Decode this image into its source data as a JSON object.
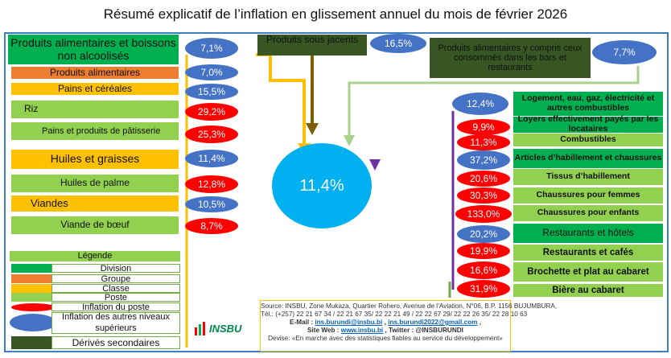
{
  "title": "Résumé  explicatif de l’inflation en glissement annuel du mois de février 2026",
  "left": {
    "items": [
      {
        "label": "Produits alimentaires et boissons  non alcoolisés",
        "value": "7,1%"
      },
      {
        "label": "Produits alimentaires",
        "value": "7,0%"
      },
      {
        "label": "Pains et céréales",
        "value": "15,5%"
      },
      {
        "label": "Riz",
        "value": "29,2%"
      },
      {
        "label": "Pains et produits de pâtisserie",
        "value": "25,3%"
      },
      {
        "label": "Huiles et graisses",
        "value": "11,4%"
      },
      {
        "label": "Huiles de palme",
        "value": "12,8%"
      },
      {
        "label": "Viandes",
        "value": "10,5%"
      },
      {
        "label": "Viande de bœuf",
        "value": "8,7%"
      }
    ]
  },
  "top": {
    "sous_jacents_label": "Produits sous jacents",
    "sous_jacents_value": "16,5%",
    "bars_label": "Produits alimentaires y compris ceux  consommés dans les bars et restaurants",
    "bars_value": "7,7%"
  },
  "center": {
    "value": "11,4%"
  },
  "right": {
    "items": [
      {
        "label": "Logement, eau, gaz, électricité et autres combustibles",
        "value": "12,4%"
      },
      {
        "label": "Loyers effectivement payés par les locataires",
        "value": "9,9%"
      },
      {
        "label": "Combustibles",
        "value": "11,3%"
      },
      {
        "label": "Articles d’habillement et chaussures",
        "value": "37,2%"
      },
      {
        "label": "Tissus d’habillement",
        "value": "20,6%"
      },
      {
        "label": "Chaussures pour femmes",
        "value": "30,3%"
      },
      {
        "label": "Chaussures pour enfants",
        "value": "133,0%"
      },
      {
        "label": "Restaurants et hôtels",
        "value": "20,2%"
      },
      {
        "label": "Restaurants et cafés",
        "value": "19,9%"
      },
      {
        "label": "Brochette et plat au cabaret",
        "value": "16,6%"
      },
      {
        "label": "Bière au cabaret",
        "value": "31,9%"
      }
    ]
  },
  "legend": {
    "title": "Légende",
    "items": [
      {
        "label": "Division",
        "color": "#00b050"
      },
      {
        "label": "Groupe",
        "color": "#ed7d31"
      },
      {
        "label": "Classe",
        "color": "#ffc000"
      },
      {
        "label": "Poste",
        "color": "#92d050"
      },
      {
        "label": "Inflation du   poste",
        "color": "#ff0000"
      },
      {
        "label": "Inflation des autres niveaux supérieurs",
        "color": "#4472c4"
      },
      {
        "label": "Dérivés secondaires",
        "color": "#375623"
      }
    ]
  },
  "logo": {
    "text": "INSBU"
  },
  "source": {
    "line1": "Source: INSBU, Zone Mukaza, Quartier Rohero, Avenue de l’Aviation, N°06, B.P. 1156 BUJUMBURA,",
    "line2": "Tél.: (+257) 22 21 67 34 /  22 21 67 35/ 22 22 21 49 / 22 22 67 29/ 22 22 26 35/ 22 28 10 63",
    "email_label": "E-Mail : ",
    "email1": "ins.burundi@insbu.bi",
    "email_sep": " , ",
    "email2": "ins.burundi2022@gmail.com",
    "email_end": " ,",
    "site_label": "Site Web : ",
    "site": "www.insbu.bi",
    "twitter": " , Twitter : @INSBURUNDI",
    "devise": "Devise: «En marche avec des statistiques fiables au service du développement»"
  }
}
